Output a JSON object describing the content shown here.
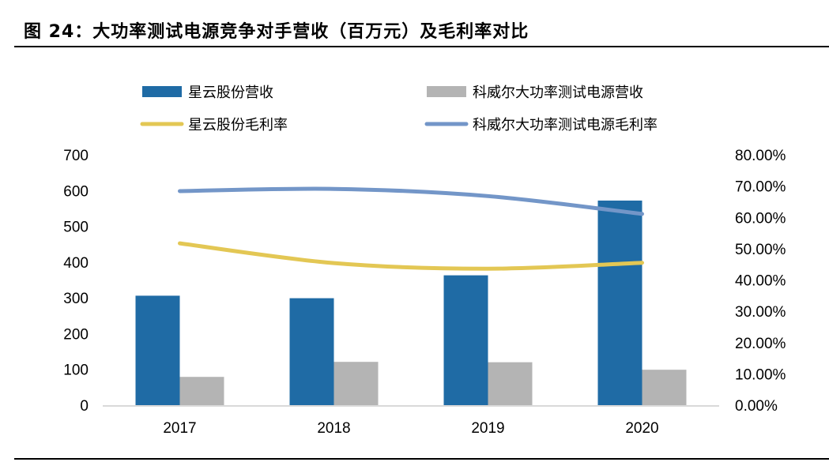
{
  "title": "图 24：大功率测试电源竞争对手营收（百万元）及毛利率对比",
  "chart_data": {
    "type": "bar+line",
    "title": "",
    "categories": [
      "2017",
      "2018",
      "2019",
      "2020"
    ],
    "y_left": {
      "range": [
        0,
        700
      ],
      "ticks": [
        "0",
        "100",
        "200",
        "300",
        "400",
        "500",
        "600",
        "700"
      ]
    },
    "y_right": {
      "range": [
        0,
        0.8
      ],
      "ticks": [
        "0.00%",
        "10.00%",
        "20.00%",
        "30.00%",
        "40.00%",
        "50.00%",
        "60.00%",
        "70.00%",
        "80.00%"
      ]
    },
    "grid": false,
    "legend_position": "top",
    "series": [
      {
        "name": "星云股份营收",
        "type": "bar",
        "axis": "left",
        "color": "#1f6ba5",
        "values": [
          306,
          299,
          363,
          572
        ]
      },
      {
        "name": "科威尔大功率测试电源营收",
        "type": "bar",
        "axis": "left",
        "color": "#b4b4b4",
        "values": [
          79,
          121,
          120,
          99
        ]
      },
      {
        "name": "星云股份毛利率",
        "type": "line",
        "axis": "right",
        "color": "#e3c754",
        "values": [
          0.517,
          0.454,
          0.436,
          0.455
        ]
      },
      {
        "name": "科威尔大功率测试电源毛利率",
        "type": "line",
        "axis": "right",
        "color": "#7396c8",
        "values": [
          0.684,
          0.691,
          0.668,
          0.611
        ]
      }
    ]
  }
}
